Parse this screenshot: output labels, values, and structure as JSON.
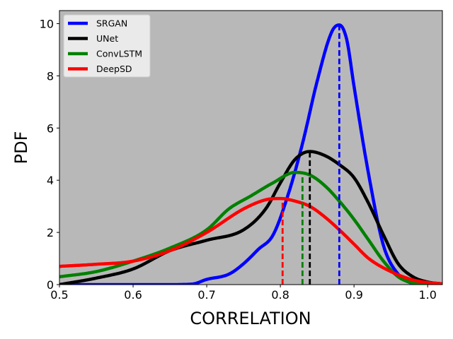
{
  "chart_data": {
    "type": "line",
    "subtype": "kde-density",
    "title": "",
    "xlabel": "CORRELATION",
    "ylabel": "PDF",
    "xlim": [
      0.5,
      1.02
    ],
    "ylim": [
      0,
      10.5
    ],
    "xticks": [
      "0.5",
      "0.6",
      "0.7",
      "0.8",
      "0.9",
      "1.0"
    ],
    "yticks": [
      "0",
      "2",
      "4",
      "6",
      "8",
      "10"
    ],
    "background": "#b8b8b8",
    "grid": false,
    "legend_position": "top-left",
    "series": [
      {
        "name": "SRGAN",
        "color": "#0000ff",
        "mean_marker": 0.88,
        "x": [
          0.5,
          0.6,
          0.65,
          0.68,
          0.7,
          0.73,
          0.75,
          0.77,
          0.79,
          0.81,
          0.83,
          0.85,
          0.87,
          0.88,
          0.89,
          0.9,
          0.92,
          0.94,
          0.96,
          0.98,
          1.0,
          1.02
        ],
        "y": [
          0.0,
          0.0,
          0.0,
          0.02,
          0.2,
          0.4,
          0.8,
          1.35,
          1.9,
          3.4,
          5.4,
          7.8,
          9.7,
          9.95,
          9.4,
          7.6,
          4.2,
          1.5,
          0.4,
          0.05,
          0.0,
          0.0
        ]
      },
      {
        "name": "UNet",
        "color": "#000000",
        "mean_marker": 0.84,
        "x": [
          0.5,
          0.55,
          0.6,
          0.65,
          0.7,
          0.75,
          0.78,
          0.8,
          0.82,
          0.84,
          0.86,
          0.88,
          0.9,
          0.92,
          0.94,
          0.96,
          0.98,
          1.0,
          1.02
        ],
        "y": [
          0.0,
          0.25,
          0.6,
          1.3,
          1.7,
          2.1,
          2.9,
          3.9,
          4.8,
          5.1,
          4.95,
          4.6,
          4.1,
          3.1,
          1.9,
          0.8,
          0.3,
          0.1,
          0.03
        ]
      },
      {
        "name": "ConvLSTM",
        "color": "#008000",
        "mean_marker": 0.83,
        "x": [
          0.5,
          0.55,
          0.6,
          0.65,
          0.7,
          0.73,
          0.76,
          0.79,
          0.82,
          0.84,
          0.86,
          0.88,
          0.9,
          0.92,
          0.94,
          0.96,
          0.98,
          1.0,
          1.02
        ],
        "y": [
          0.3,
          0.5,
          0.9,
          1.4,
          2.1,
          2.9,
          3.4,
          3.9,
          4.3,
          4.2,
          3.8,
          3.2,
          2.5,
          1.7,
          0.9,
          0.3,
          0.06,
          0.0,
          0.0
        ]
      },
      {
        "name": "DeepSD",
        "color": "#ff0000",
        "mean_marker": 0.803,
        "x": [
          0.5,
          0.55,
          0.6,
          0.65,
          0.7,
          0.75,
          0.78,
          0.8,
          0.82,
          0.84,
          0.86,
          0.88,
          0.9,
          0.92,
          0.95,
          0.98,
          1.0,
          1.02
        ],
        "y": [
          0.7,
          0.78,
          0.9,
          1.3,
          2.0,
          2.9,
          3.25,
          3.3,
          3.2,
          3.0,
          2.6,
          2.1,
          1.55,
          1.0,
          0.5,
          0.18,
          0.08,
          0.03
        ]
      }
    ]
  }
}
